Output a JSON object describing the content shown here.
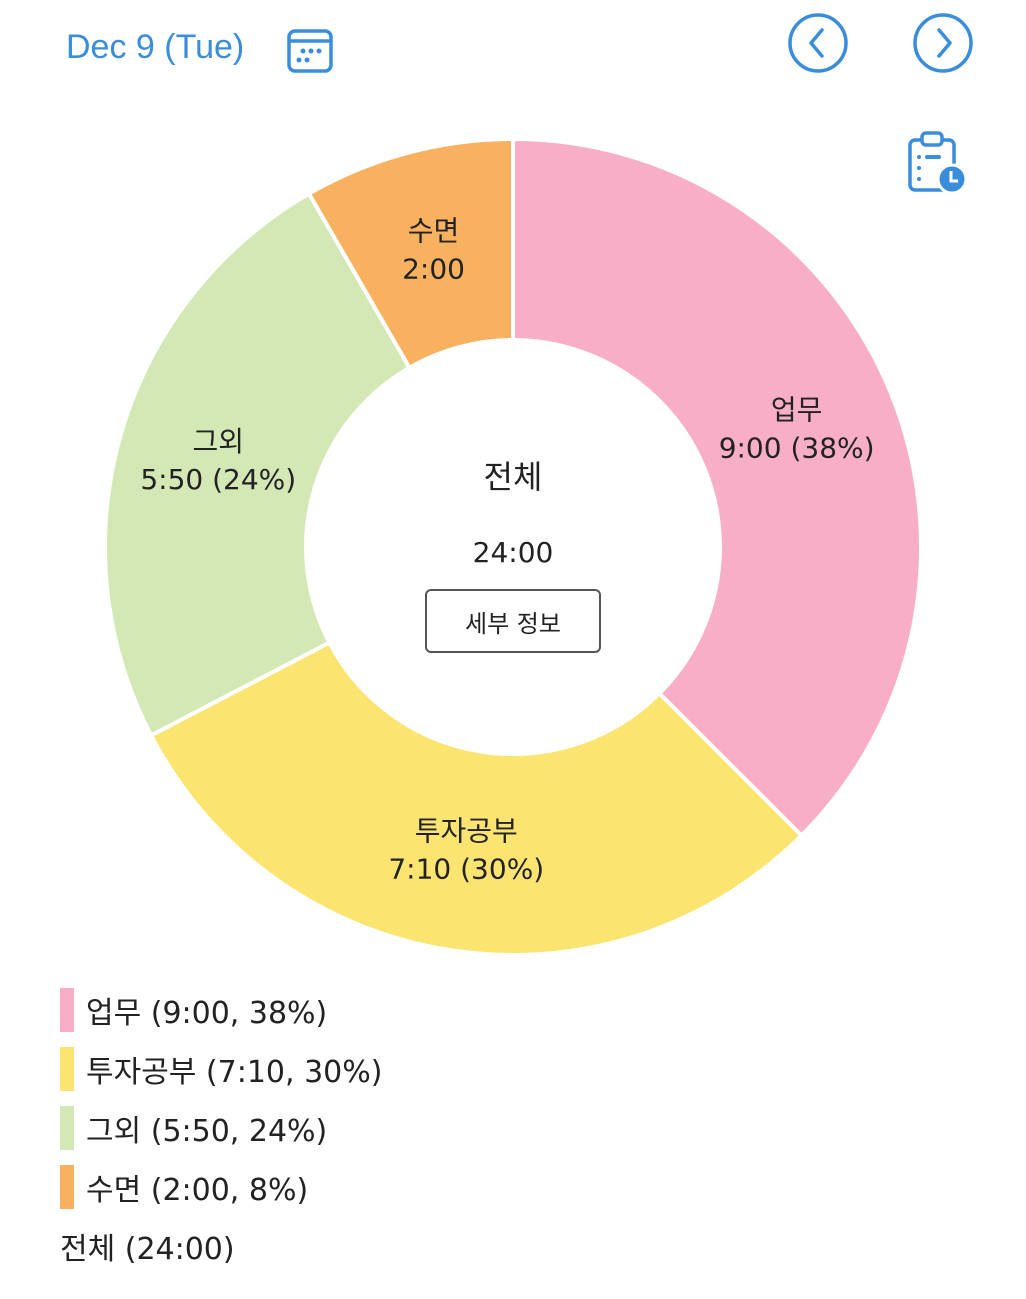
{
  "header": {
    "date": "Dec 9 (Tue)",
    "calendar_icon": "calendar-icon",
    "prev_icon": "chevron-left-circle-icon",
    "next_icon": "chevron-right-circle-icon",
    "clipboard_icon": "clipboard-clock-icon",
    "accent": "#3A8DDB"
  },
  "center": {
    "title": "전체",
    "value": "24:00",
    "detail_button": "세부 정보"
  },
  "chart_data": {
    "type": "pie",
    "donut": true,
    "unit": "minutes",
    "slices": [
      {
        "name": "업무",
        "minutes": 540,
        "time": "9:00",
        "percent": 38,
        "label_line2": "9:00 (38%)",
        "legend": "업무 (9:00, 38%)",
        "color": "#F7AEC6"
      },
      {
        "name": "투자공부",
        "minutes": 430,
        "time": "7:10",
        "percent": 30,
        "label_line2": "7:10 (30%)",
        "legend": "투자공부 (7:10, 30%)",
        "color": "#FCE470"
      },
      {
        "name": "그외",
        "minutes": 350,
        "time": "5:50",
        "percent": 24,
        "label_line2": "5:50 (24%)",
        "legend": "그외 (5:50, 24%)",
        "color": "#D4E8B6"
      },
      {
        "name": "수면",
        "minutes": 120,
        "time": "2:00",
        "percent": 8,
        "label_line2": "2:00",
        "legend": "수면 (2:00, 8%)",
        "color": "#F8B15E"
      }
    ],
    "total_legend": "전체 (24:00)"
  }
}
